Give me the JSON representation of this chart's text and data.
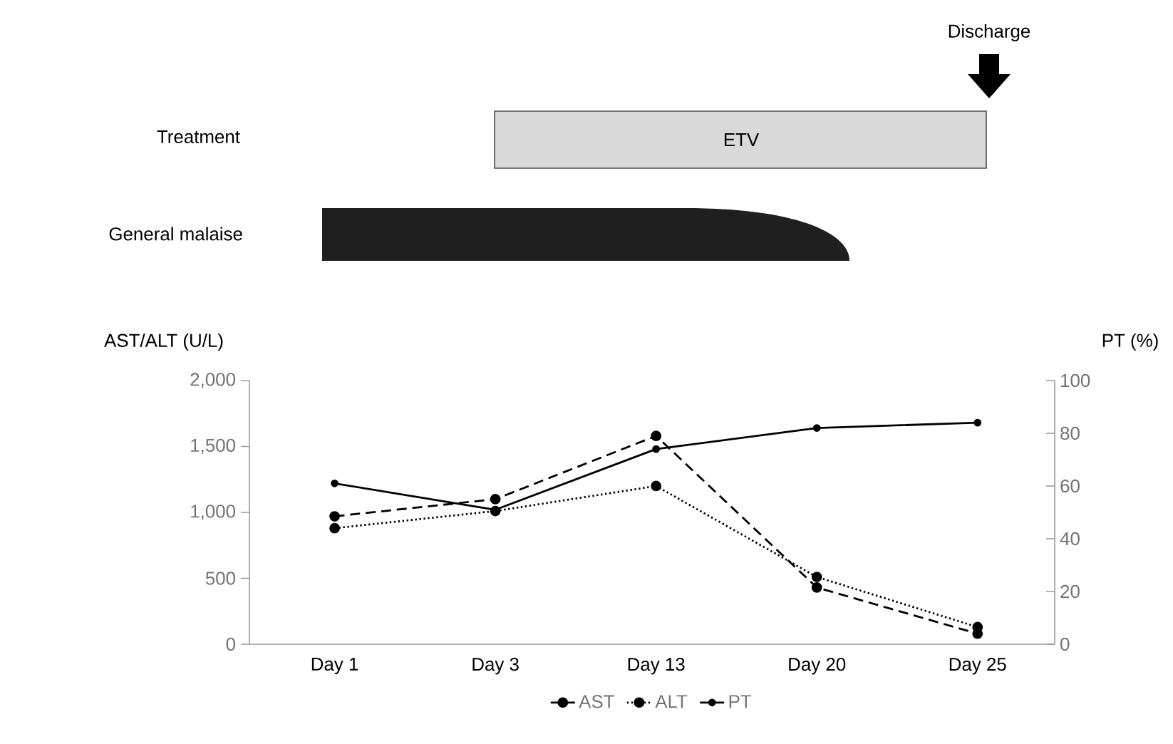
{
  "chart_data": {
    "type": "line",
    "categories": [
      "Day 1",
      "Day 3",
      "Day 13",
      "Day 20",
      "Day 25"
    ],
    "series": [
      {
        "name": "AST",
        "color": "#000000",
        "line_style": "dashed",
        "values": [
          970,
          1100,
          1580,
          430,
          80
        ]
      },
      {
        "name": "ALT",
        "color": "#000000",
        "line_style": "dotted",
        "values": [
          880,
          1010,
          1200,
          510,
          130
        ]
      },
      {
        "name": "PT",
        "color": "#000000",
        "line_style": "solid",
        "axis": "y2",
        "values": [
          61,
          51,
          74,
          82,
          84
        ]
      }
    ],
    "ylabel": "AST/ALT (U/L)",
    "y2label": "PT (%)",
    "ylim": [
      0,
      2000
    ],
    "yticks": [
      0,
      500,
      {
        "value": 1000,
        "label": "1,000"
      },
      {
        "value": 1500,
        "label": "1,500"
      },
      {
        "value": 2000,
        "label": "2,000"
      }
    ],
    "y2lim": [
      0,
      100
    ],
    "y2ticks": [
      0,
      20,
      40,
      60,
      80,
      100
    ],
    "marker": "circle",
    "legend": "bottom",
    "annotations": [
      "Treatment",
      "ETV",
      "General malaise",
      "Discharge"
    ]
  }
}
